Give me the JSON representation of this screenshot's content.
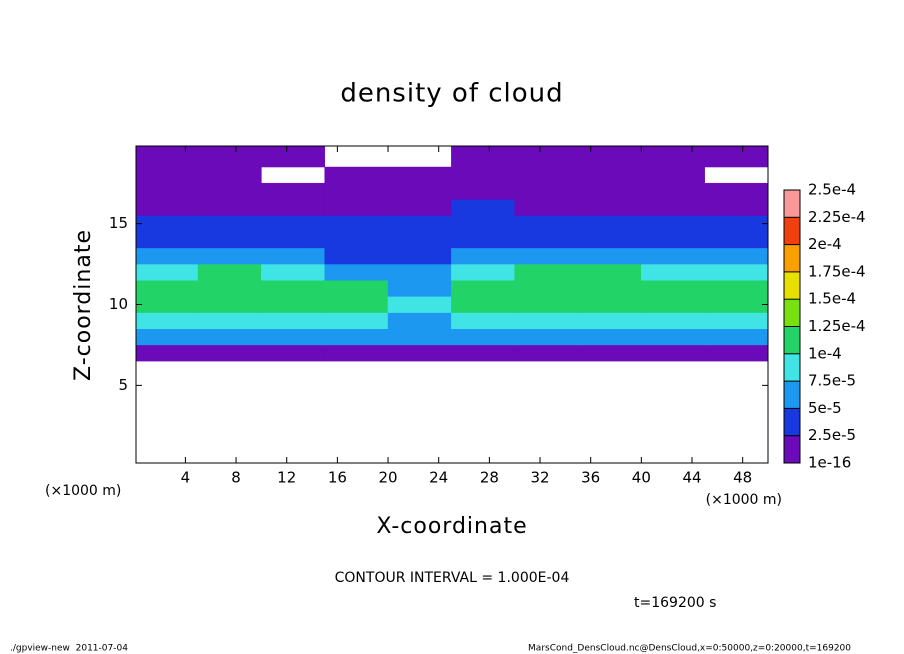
{
  "chart_data": {
    "type": "heatmap",
    "title": "density of cloud",
    "x_label": "X-coordinate",
    "y_label": "Z-coordinate",
    "x_unit": "(×1000 m)",
    "y_unit": "(×1000 m)",
    "contour_note": "CONTOUR INTERVAL = 1.000E-04",
    "time_label": "t=169200 s",
    "footer_left": "./gpview-new  2011-07-04",
    "footer_right": "MarsCond_DensCloud.nc@DensCloud,x=0:50000,z=0:20000,t=169200",
    "xlim": [
      0.1,
      50
    ],
    "ylim": [
      0.2,
      19.8
    ],
    "xticks": [
      4,
      8,
      12,
      16,
      20,
      24,
      28,
      32,
      36,
      40,
      44,
      48
    ],
    "yticks": [
      5,
      10,
      15
    ],
    "xbins": [
      0.1,
      5,
      10,
      15,
      20,
      25,
      30,
      35,
      40,
      45,
      50
    ],
    "zbins": [
      0.2,
      6.5,
      7.5,
      8.5,
      9.5,
      10.5,
      11.5,
      12.5,
      13.5,
      14.5,
      15.5,
      16.5,
      17.5,
      18.5,
      19.8
    ],
    "values": [
      [
        null,
        null,
        null,
        null,
        null,
        null,
        null,
        null,
        null,
        null
      ],
      [
        2e-05,
        2e-05,
        2e-05,
        2e-05,
        2e-05,
        2e-05,
        2e-05,
        2e-05,
        2e-05,
        2e-05
      ],
      [
        6e-05,
        6e-05,
        6e-05,
        6e-05,
        5e-05,
        6e-05,
        6e-05,
        6e-05,
        6e-05,
        6e-05
      ],
      [
        8e-05,
        8e-05,
        8e-05,
        8e-05,
        7e-05,
        8e-05,
        8e-05,
        8e-05,
        8e-05,
        8e-05
      ],
      [
        0.000105,
        0.00011,
        0.00011,
        0.0001,
        8e-05,
        0.0001,
        0.00011,
        0.00011,
        0.000105,
        0.000105
      ],
      [
        0.00011,
        0.000115,
        0.00011,
        0.0001,
        6e-05,
        0.00011,
        0.000115,
        0.000115,
        0.00011,
        0.00011
      ],
      [
        9e-05,
        0.0001,
        9e-05,
        7e-05,
        5e-05,
        9e-05,
        0.0001,
        0.0001,
        9e-05,
        9e-05
      ],
      [
        6e-05,
        6e-05,
        5e-05,
        4e-05,
        4e-05,
        5e-05,
        6e-05,
        6e-05,
        6e-05,
        6e-05
      ],
      [
        4e-05,
        4e-05,
        4e-05,
        4e-05,
        3e-05,
        4e-05,
        4e-05,
        4e-05,
        4e-05,
        4e-05
      ],
      [
        3e-05,
        3e-05,
        3e-05,
        3e-05,
        3e-05,
        3e-05,
        3e-05,
        3e-05,
        3e-05,
        3e-05
      ],
      [
        2e-05,
        1.5e-05,
        2e-05,
        1.5e-05,
        2e-05,
        3e-05,
        1.5e-05,
        1.5e-05,
        1.5e-05,
        1.5e-05
      ],
      [
        1.5e-05,
        1e-05,
        1e-05,
        1e-05,
        1e-05,
        2e-05,
        1e-05,
        1e-05,
        1e-05,
        1e-05
      ],
      [
        1e-05,
        1e-05,
        null,
        1e-05,
        1e-05,
        1e-05,
        1e-05,
        1e-05,
        1e-05,
        null
      ],
      [
        5e-06,
        1e-05,
        5e-06,
        null,
        null,
        5e-06,
        5e-06,
        5e-06,
        5e-06,
        5e-06
      ]
    ],
    "levels": [
      1e-16,
      {
        "value": 2.5e-05,
        "label": "2.5e-5"
      },
      {
        "value": 5e-05,
        "label": "5e-5"
      },
      {
        "value": 7.5e-05,
        "label": "7.5e-5"
      },
      {
        "value": 0.0001,
        "label": "1e-4"
      },
      {
        "value": 0.000125,
        "label": "1.25e-4"
      },
      {
        "value": 0.00015,
        "label": "1.5e-4"
      },
      {
        "value": 0.000175,
        "label": "1.75e-4"
      },
      {
        "value": 0.0002,
        "label": "2e-4"
      },
      {
        "value": 0.000225,
        "label": "2.25e-4"
      },
      {
        "value": 0.00025,
        "label": "2.5e-4"
      }
    ],
    "colors": [
      "#6a0ab8",
      "#1838e0",
      "#1c98f0",
      "#40e4e4",
      "#22d468",
      "#78e010",
      "#e8e000",
      "#f8a000",
      "#f04010",
      "#f89898"
    ]
  }
}
